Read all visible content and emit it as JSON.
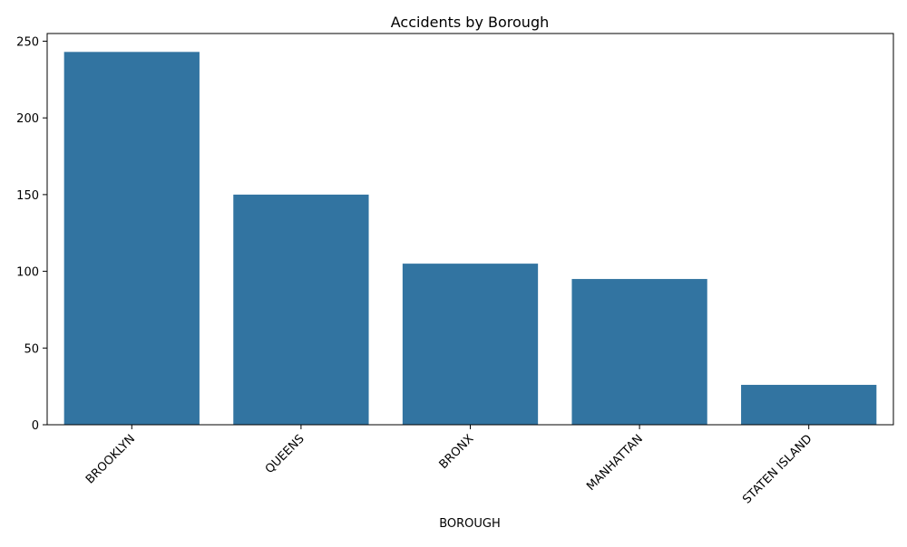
{
  "chart_data": {
    "type": "bar",
    "title": "Accidents by Borough",
    "xlabel": "BOROUGH",
    "ylabel": "",
    "categories": [
      "BROOKLYN",
      "QUEENS",
      "BRONX",
      "MANHATTAN",
      "STATEN ISLAND"
    ],
    "values": [
      243,
      150,
      105,
      95,
      26
    ],
    "ylim": [
      0,
      255
    ],
    "yticks": [
      0,
      50,
      100,
      150,
      200,
      250
    ],
    "grid": false,
    "bar_color": "#3274a1"
  }
}
